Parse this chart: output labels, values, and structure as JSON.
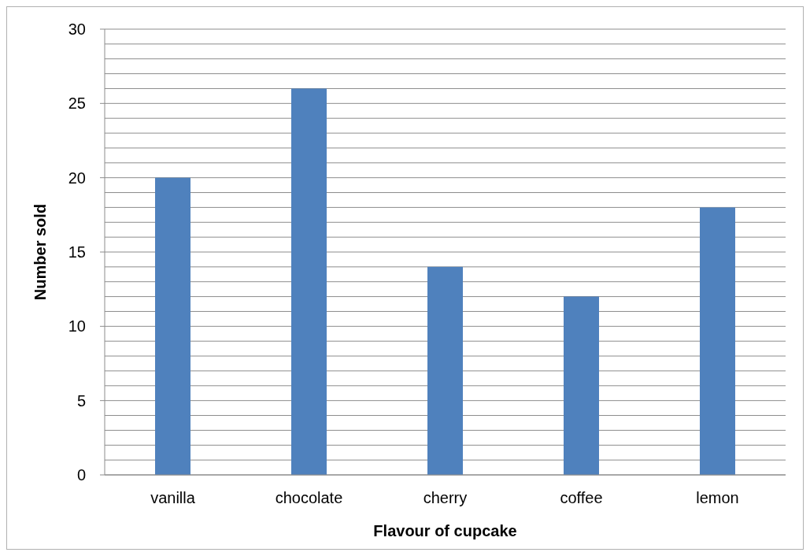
{
  "chart_data": {
    "type": "bar",
    "xlabel": "Flavour of cupcake",
    "ylabel": "Number sold",
    "categories": [
      "vanilla",
      "chocolate",
      "cherry",
      "coffee",
      "lemon"
    ],
    "values": [
      20,
      26,
      14,
      12,
      18
    ],
    "color": "#4f81bd",
    "ylim": [
      0,
      30
    ],
    "yticks": [
      0,
      {
        "value": 1,
        "label": null
      },
      {
        "value": 2,
        "label": null
      },
      {
        "value": 3,
        "label": null
      },
      {
        "value": 4,
        "label": null
      },
      5,
      {
        "value": 6,
        "label": null
      },
      {
        "value": 7,
        "label": null
      },
      {
        "value": 8,
        "label": null
      },
      {
        "value": 9,
        "label": null
      },
      10,
      {
        "value": 11,
        "label": null
      },
      {
        "value": 12,
        "label": null
      },
      {
        "value": 13,
        "label": null
      },
      {
        "value": 14,
        "label": null
      },
      15,
      {
        "value": 16,
        "label": null
      },
      {
        "value": 17,
        "label": null
      },
      {
        "value": 18,
        "label": null
      },
      {
        "value": 19,
        "label": null
      },
      20,
      {
        "value": 21,
        "label": null
      },
      {
        "value": 22,
        "label": null
      },
      {
        "value": 23,
        "label": null
      },
      {
        "value": 24,
        "label": null
      },
      25,
      {
        "value": 26,
        "label": null
      },
      {
        "value": 27,
        "label": null
      },
      {
        "value": 28,
        "label": null
      },
      {
        "value": 29,
        "label": null
      },
      30
    ],
    "grid": "y"
  }
}
